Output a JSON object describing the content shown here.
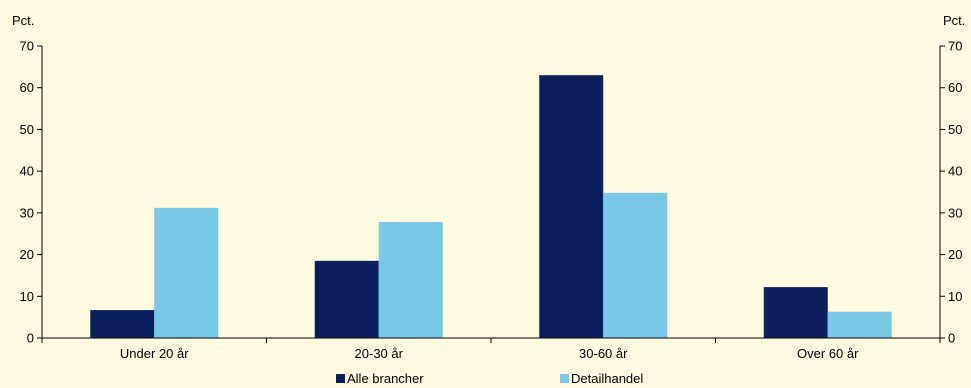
{
  "colors": {
    "background": "#fefbe1",
    "axis": "#000000"
  },
  "chart_data": {
    "type": "bar",
    "categories": [
      "Under 20 år",
      "20-30 år",
      "30-60 år",
      "Over 60 år"
    ],
    "series": [
      {
        "name": "Alle brancher",
        "values": [
          6.7,
          18.5,
          63,
          12.2
        ],
        "color": "#0a1f5c"
      },
      {
        "name": "Detailhandel",
        "values": [
          31.2,
          27.8,
          34.8,
          6.3
        ],
        "color": "#78c8e6"
      }
    ],
    "ylabel_left": "Pct.",
    "ylabel_right": "Pct.",
    "ylim": [
      0,
      70
    ],
    "yticks": [
      0,
      10,
      20,
      30,
      40,
      50,
      60,
      70
    ],
    "grid": false,
    "legend_position": "bottom-center"
  }
}
